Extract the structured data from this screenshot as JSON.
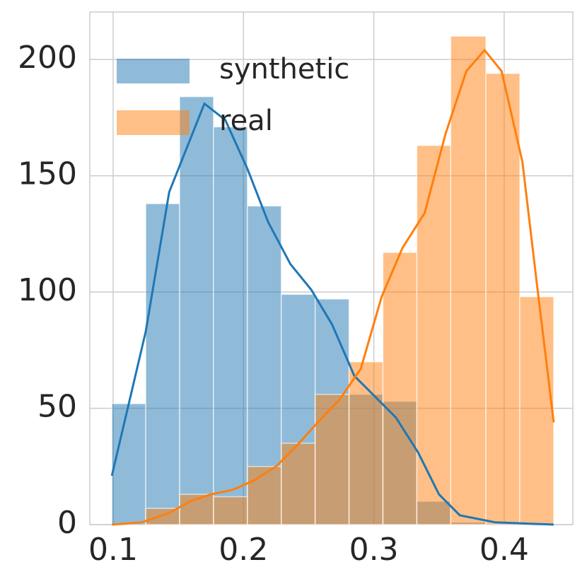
{
  "chart_data": {
    "type": "histogram",
    "bins": [
      0.099,
      0.125,
      0.151,
      0.177,
      0.203,
      0.229,
      0.255,
      0.281,
      0.307,
      0.333,
      0.359,
      0.386,
      0.412,
      0.438
    ],
    "series": [
      {
        "name": "synthetic",
        "color": "#1f77b4",
        "values": [
          52,
          138,
          184,
          171,
          137,
          99,
          97,
          56,
          53,
          10,
          1,
          0,
          0
        ],
        "kde_x": [
          0.099,
          0.125,
          0.143,
          0.17,
          0.186,
          0.203,
          0.219,
          0.236,
          0.252,
          0.268,
          0.285,
          0.301,
          0.317,
          0.334,
          0.35,
          0.366,
          0.393,
          0.438
        ],
        "kde_y": [
          21,
          83,
          143,
          181,
          174,
          153,
          130,
          112,
          101,
          86,
          64,
          55,
          46,
          31,
          13,
          4,
          1,
          0
        ]
      },
      {
        "name": "real",
        "color": "#ff7f0e",
        "values": [
          0,
          7,
          13,
          12,
          25,
          35,
          56,
          70,
          117,
          163,
          210,
          194,
          98
        ],
        "kde_x": [
          0.099,
          0.122,
          0.143,
          0.159,
          0.175,
          0.192,
          0.208,
          0.225,
          0.241,
          0.257,
          0.274,
          0.29,
          0.306,
          0.322,
          0.339,
          0.355,
          0.371,
          0.385,
          0.398,
          0.414,
          0.425,
          0.438
        ],
        "kde_y": [
          0,
          1,
          5,
          10,
          13,
          15,
          19,
          25,
          34,
          44,
          54,
          67,
          98,
          119,
          134,
          168,
          195,
          204,
          195,
          156,
          104,
          44
        ]
      }
    ],
    "xlim": [
      0.0821,
      0.4527
    ],
    "ylim": [
      0,
      220.4
    ],
    "xticks": [
      0.1,
      0.2,
      0.3,
      0.4
    ],
    "yticks": [
      0,
      50,
      100,
      150,
      200
    ],
    "grid": true,
    "legend": "upper-left",
    "bar_alpha": 0.5
  }
}
